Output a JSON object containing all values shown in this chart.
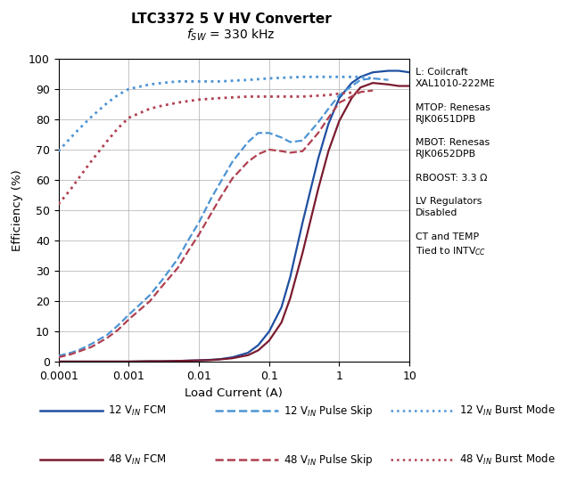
{
  "title_line1": "LTC3372 5 V HV Converter",
  "title_line2": "f_{SW} = 330 kHz",
  "xlabel": "Load Current (A)",
  "ylabel": "Efficiency (%)",
  "xlim": [
    0.0001,
    10
  ],
  "ylim": [
    0,
    100
  ],
  "color_blue_solid": "#1e4fa0",
  "color_blue_light": "#4d94d4",
  "color_red_dark": "#7a1a2e",
  "color_red_light": "#b04050",
  "curves": {
    "12V_FCM": {
      "x": [
        0.0001,
        0.00015,
        0.0002,
        0.0003,
        0.0005,
        0.0007,
        0.001,
        0.002,
        0.003,
        0.005,
        0.007,
        0.01,
        0.015,
        0.02,
        0.03,
        0.05,
        0.07,
        0.1,
        0.15,
        0.2,
        0.3,
        0.5,
        0.7,
        1.0,
        1.5,
        2.0,
        3.0,
        5.0,
        7.0,
        10.0
      ],
      "y": [
        0.1,
        0.1,
        0.1,
        0.1,
        0.1,
        0.1,
        0.1,
        0.2,
        0.2,
        0.3,
        0.4,
        0.5,
        0.7,
        0.9,
        1.5,
        3.0,
        5.5,
        10.0,
        18.0,
        28.0,
        46.0,
        67.0,
        78.5,
        87.0,
        92.0,
        94.0,
        95.5,
        96.0,
        96.0,
        95.5
      ],
      "color": "#1e4fa0",
      "linestyle": "solid",
      "linewidth": 1.6
    },
    "12V_PS": {
      "x": [
        0.0001,
        0.00015,
        0.0002,
        0.0003,
        0.0005,
        0.0007,
        0.001,
        0.002,
        0.003,
        0.005,
        0.007,
        0.01,
        0.015,
        0.02,
        0.03,
        0.05,
        0.07,
        0.1,
        0.15,
        0.2,
        0.3,
        0.5,
        0.7,
        1.0,
        2.0,
        3.0,
        5.0
      ],
      "y": [
        2.0,
        3.0,
        4.0,
        6.0,
        9.0,
        12.0,
        15.5,
        22.0,
        27.0,
        34.0,
        40.0,
        46.0,
        54.0,
        59.0,
        66.0,
        72.5,
        75.5,
        75.5,
        74.0,
        72.5,
        73.0,
        79.0,
        83.5,
        88.0,
        93.0,
        93.5,
        93.0
      ],
      "color": "#4d94d4",
      "linestyle": "dashed",
      "linewidth": 1.6
    },
    "12V_BM": {
      "x": [
        0.0001,
        0.00015,
        0.0002,
        0.0003,
        0.0005,
        0.0007,
        0.001,
        0.002,
        0.003,
        0.005,
        0.007,
        0.01,
        0.02,
        0.05,
        0.1,
        0.3,
        0.7,
        1.0,
        2.0,
        3.0
      ],
      "y": [
        69.5,
        74.0,
        77.0,
        81.0,
        85.5,
        88.0,
        90.0,
        91.5,
        92.0,
        92.5,
        92.5,
        92.5,
        92.5,
        93.0,
        93.5,
        94.0,
        94.0,
        94.0,
        94.0,
        93.5
      ],
      "color": "#4d94d4",
      "linestyle": "dotted",
      "linewidth": 2.0
    },
    "48V_FCM": {
      "x": [
        0.0001,
        0.00015,
        0.0002,
        0.0003,
        0.0005,
        0.0007,
        0.001,
        0.002,
        0.003,
        0.005,
        0.007,
        0.01,
        0.015,
        0.02,
        0.03,
        0.05,
        0.07,
        0.1,
        0.15,
        0.2,
        0.3,
        0.5,
        0.7,
        1.0,
        1.5,
        2.0,
        3.0,
        5.0,
        7.0,
        10.0
      ],
      "y": [
        0.1,
        0.1,
        0.1,
        0.1,
        0.1,
        0.1,
        0.1,
        0.2,
        0.2,
        0.3,
        0.4,
        0.5,
        0.6,
        0.8,
        1.2,
        2.2,
        3.8,
        7.0,
        13.0,
        21.0,
        36.0,
        57.0,
        69.5,
        79.5,
        87.0,
        90.5,
        92.0,
        91.5,
        91.0,
        91.0
      ],
      "color": "#7a1a2e",
      "linestyle": "solid",
      "linewidth": 1.6
    },
    "48V_PS": {
      "x": [
        0.0001,
        0.00015,
        0.0002,
        0.0003,
        0.0005,
        0.0007,
        0.001,
        0.002,
        0.003,
        0.005,
        0.007,
        0.01,
        0.015,
        0.02,
        0.03,
        0.05,
        0.07,
        0.1,
        0.15,
        0.2,
        0.3,
        0.5,
        0.7,
        1.0,
        2.0,
        3.0
      ],
      "y": [
        1.5,
        2.5,
        3.5,
        5.0,
        8.0,
        10.5,
        14.0,
        20.0,
        25.0,
        31.0,
        36.5,
        42.0,
        49.0,
        54.0,
        60.5,
        66.0,
        68.5,
        70.0,
        69.5,
        69.0,
        69.5,
        75.5,
        80.5,
        85.5,
        89.0,
        89.5
      ],
      "color": "#b04050",
      "linestyle": "dashed",
      "linewidth": 1.6
    },
    "48V_BM": {
      "x": [
        0.0001,
        0.00015,
        0.0002,
        0.0003,
        0.0005,
        0.0007,
        0.001,
        0.002,
        0.003,
        0.005,
        0.007,
        0.01,
        0.02,
        0.05,
        0.1,
        0.3,
        0.7,
        1.0,
        2.0
      ],
      "y": [
        52.0,
        57.0,
        61.0,
        66.5,
        73.0,
        77.0,
        80.5,
        83.5,
        84.5,
        85.5,
        86.0,
        86.5,
        87.0,
        87.5,
        87.5,
        87.5,
        88.0,
        88.5,
        89.0
      ],
      "color": "#b04050",
      "linestyle": "dotted",
      "linewidth": 2.0
    }
  },
  "legend_row1": {
    "labels": [
      "12 V$_{IN}$ FCM",
      "12 V$_{IN}$ Pulse Skip",
      "12 V$_{IN}$ Burst Mode"
    ],
    "colors": [
      "#1e4fa0",
      "#4d94d4",
      "#4d94d4"
    ],
    "styles": [
      "solid",
      "dashed",
      "dotted"
    ]
  },
  "legend_row2": {
    "labels": [
      "48 V$_{IN}$ FCM",
      "48 V$_{IN}$ Pulse Skip",
      "48 V$_{IN}$ Burst Mode"
    ],
    "colors": [
      "#7a1a2e",
      "#b04050",
      "#b04050"
    ],
    "styles": [
      "solid",
      "dashed",
      "dotted"
    ]
  },
  "annotation_lines": [
    "L: Coilcraft",
    "XAL1010-222ME",
    "",
    "MTOP: Renesas",
    "RJK0651DPB",
    "",
    "MBOT: Renesas",
    "RJK0652DPB",
    "",
    "RBOOST: 3.3 Ω",
    "",
    "LV Regulators",
    "Disabled",
    "",
    "CT and TEMP",
    "Tied to INTV$_{CC}$"
  ]
}
